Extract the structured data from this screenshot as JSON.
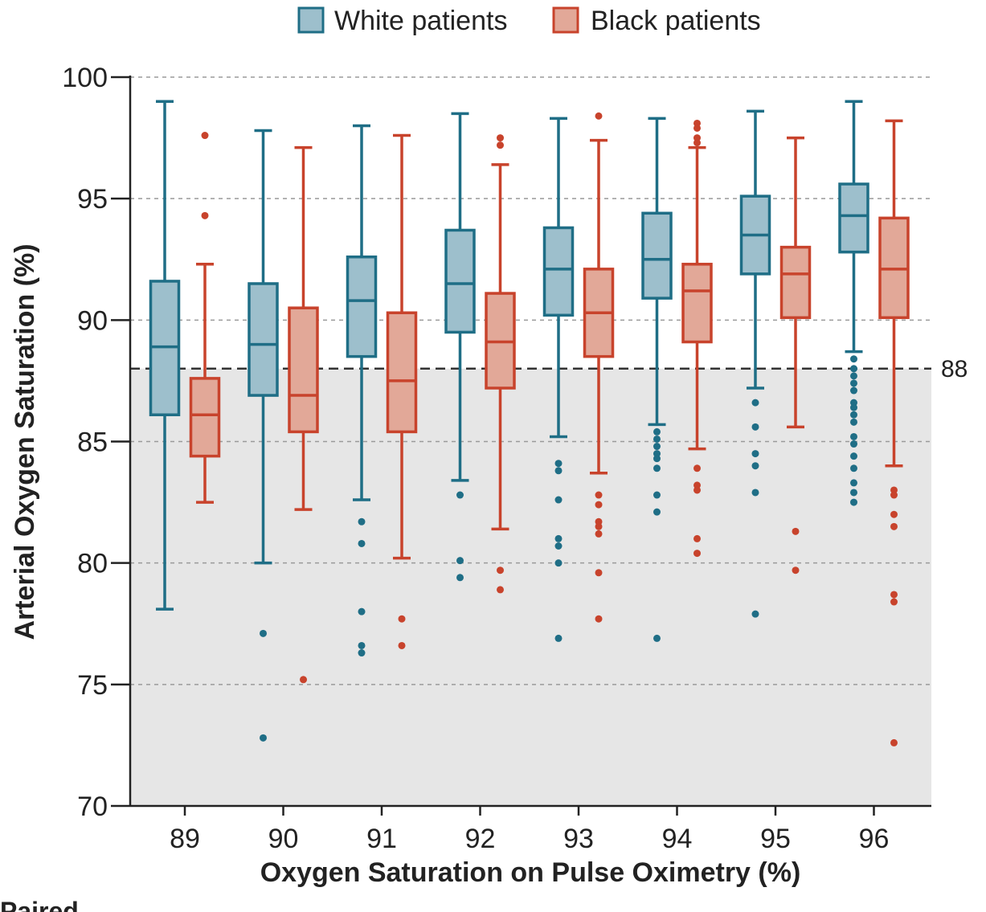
{
  "chart_data": {
    "type": "box",
    "xlabel": "Oxygen Saturation on Pulse Oximetry (%)",
    "ylabel": "Arterial Oxygen Saturation (%)",
    "ylim": [
      70,
      100
    ],
    "yticks": [
      70,
      75,
      80,
      85,
      90,
      95,
      100
    ],
    "categories": [
      "89",
      "90",
      "91",
      "92",
      "93",
      "94",
      "95",
      "96"
    ],
    "grid": "horizontal dashed",
    "legend": "top-center",
    "reference_line": {
      "value": 88,
      "label": "88",
      "shade_below": true
    },
    "series": [
      {
        "name": "White patients",
        "fill": "#9dbfcc",
        "stroke": "#1f6e86",
        "boxes": [
          {
            "min": 78.1,
            "q1": 86.1,
            "median": 88.9,
            "q3": 91.6,
            "max": 99.0,
            "outliers": []
          },
          {
            "min": 80.0,
            "q1": 86.9,
            "median": 89.0,
            "q3": 91.5,
            "max": 97.8,
            "outliers": [
              77.1,
              72.8
            ]
          },
          {
            "min": 82.6,
            "q1": 88.5,
            "median": 90.8,
            "q3": 92.6,
            "max": 98.0,
            "outliers": [
              81.7,
              80.8,
              78.0,
              76.6,
              76.3
            ]
          },
          {
            "min": 83.4,
            "q1": 89.5,
            "median": 91.5,
            "q3": 93.7,
            "max": 98.5,
            "outliers": [
              82.8,
              80.1,
              79.4
            ]
          },
          {
            "min": 85.2,
            "q1": 90.2,
            "median": 92.1,
            "q3": 93.8,
            "max": 98.3,
            "outliers": [
              84.1,
              83.8,
              82.6,
              81.0,
              80.7,
              80.0,
              76.9
            ]
          },
          {
            "min": 85.7,
            "q1": 90.9,
            "median": 92.5,
            "q3": 94.4,
            "max": 98.3,
            "outliers": [
              85.4,
              85.1,
              84.8,
              84.5,
              84.3,
              83.9,
              82.8,
              82.1,
              76.9
            ]
          },
          {
            "min": 87.2,
            "q1": 91.9,
            "median": 93.5,
            "q3": 95.1,
            "max": 98.6,
            "outliers": [
              86.6,
              85.6,
              84.5,
              84.0,
              82.9,
              77.9
            ]
          },
          {
            "min": 88.7,
            "q1": 92.8,
            "median": 94.3,
            "q3": 95.6,
            "max": 99.0,
            "outliers": [
              88.4,
              88.0,
              87.7,
              87.4,
              87.1,
              86.6,
              86.4,
              86.1,
              85.8,
              85.2,
              84.9,
              84.4,
              83.9,
              83.3,
              82.9,
              82.5
            ]
          }
        ]
      },
      {
        "name": "Black patients",
        "fill": "#e2a898",
        "stroke": "#c8432c",
        "boxes": [
          {
            "min": 82.5,
            "q1": 84.4,
            "median": 86.1,
            "q3": 87.6,
            "max": 92.3,
            "outliers": [
              97.6,
              94.3
            ]
          },
          {
            "min": 82.2,
            "q1": 85.4,
            "median": 86.9,
            "q3": 90.5,
            "max": 97.1,
            "outliers": [
              75.2
            ]
          },
          {
            "min": 80.2,
            "q1": 85.4,
            "median": 87.5,
            "q3": 90.3,
            "max": 97.6,
            "outliers": [
              77.7,
              76.6
            ]
          },
          {
            "min": 81.4,
            "q1": 87.2,
            "median": 89.1,
            "q3": 91.1,
            "max": 96.4,
            "outliers": [
              97.5,
              97.2,
              79.7,
              78.9
            ]
          },
          {
            "min": 83.7,
            "q1": 88.5,
            "median": 90.3,
            "q3": 92.1,
            "max": 97.4,
            "outliers": [
              98.4,
              82.8,
              82.4,
              81.7,
              81.5,
              81.2,
              79.6,
              77.7
            ]
          },
          {
            "min": 84.7,
            "q1": 89.1,
            "median": 91.2,
            "q3": 92.3,
            "max": 97.1,
            "outliers": [
              98.1,
              97.9,
              97.5,
              97.3,
              83.9,
              83.2,
              83.0,
              81.0,
              80.4
            ]
          },
          {
            "min": 85.6,
            "q1": 90.1,
            "median": 91.9,
            "q3": 93.0,
            "max": 97.5,
            "outliers": [
              81.3,
              79.7
            ]
          },
          {
            "min": 84.0,
            "q1": 90.1,
            "median": 92.1,
            "q3": 94.2,
            "max": 98.2,
            "outliers": [
              83.0,
              82.8,
              82.0,
              81.5,
              78.7,
              78.4,
              72.6
            ]
          }
        ]
      }
    ]
  },
  "partial_label": "Paired"
}
